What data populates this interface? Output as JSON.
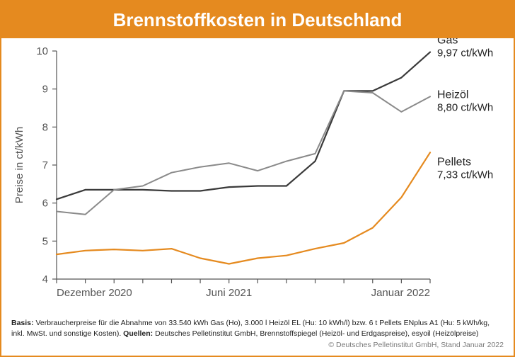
{
  "header": {
    "title": "Brennstoffkosten in Deutschland"
  },
  "chart": {
    "type": "line",
    "ylabel": "Preise in ct/kWh",
    "label_fontsize": 15,
    "ylim": [
      4,
      10
    ],
    "ytick_step": 1,
    "yticks": [
      4,
      5,
      6,
      7,
      8,
      9,
      10
    ],
    "x_count": 14,
    "xticks": [
      {
        "index": 0,
        "label": "Dezember 2020"
      },
      {
        "index": 6,
        "label": "Juni 2021"
      },
      {
        "index": 13,
        "label": "Januar 2022"
      }
    ],
    "background_color": "#ffffff",
    "grid": false,
    "axis_color": "#555555",
    "tick_color": "#555555",
    "series": [
      {
        "key": "gas",
        "name": "Gas",
        "value_label": "9,97 ct/kWh",
        "color": "#3a3a3a",
        "line_width": 2.2,
        "values": [
          6.1,
          6.35,
          6.35,
          6.35,
          6.32,
          6.32,
          6.42,
          6.45,
          6.45,
          7.1,
          8.95,
          8.95,
          9.3,
          9.97
        ]
      },
      {
        "key": "heizoel",
        "name": "Heizöl",
        "value_label": "8,80 ct/kWh",
        "color": "#8a8a8a",
        "line_width": 2.0,
        "values": [
          5.78,
          5.7,
          6.35,
          6.45,
          6.8,
          6.95,
          7.05,
          6.85,
          7.1,
          7.3,
          8.95,
          8.9,
          8.4,
          8.8
        ]
      },
      {
        "key": "pellets",
        "name": "Pellets",
        "value_label": "7,33 ct/kWh",
        "color": "#e58a1f",
        "line_width": 2.2,
        "values": [
          4.65,
          4.75,
          4.78,
          4.75,
          4.8,
          4.55,
          4.4,
          4.55,
          4.62,
          4.8,
          4.95,
          5.35,
          6.15,
          7.33
        ]
      }
    ]
  },
  "footer": {
    "basis_label": "Basis:",
    "basis_text": "Verbraucherpreise für die Abnahme von 33.540 kWh Gas (Ho), 3.000 l Heizöl EL (Hu: 10 kWh/l) bzw. 6 t Pellets ENplus A1 (Hu: 5 kWh/kg, inkl. MwSt. und sonstige Kosten).",
    "quellen_label": "Quellen:",
    "quellen_text": "Deutsches Pelletinstitut GmbH, Brennstoffspiegel (Heizöl- und Erdgaspreise), esyoil (Heizölpreise)",
    "copyright": "© Deutsches Pelletinstitut GmbH, Stand Januar 2022"
  }
}
